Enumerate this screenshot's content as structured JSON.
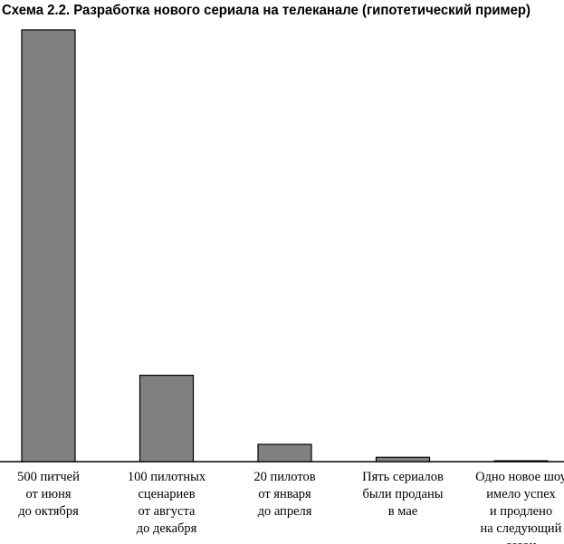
{
  "chart_data": {
    "type": "bar",
    "title": "Схема 2.2. Разработка нового сериала на телеканале (гипотетический пример)",
    "categories": [
      "500 питчей\nот июня\nдо октября",
      "100 пилотных\nсценариев\nот августа\nдо декабря",
      "20 пилотов\nот января\nдо апреля",
      "Пять сериалов\nбыли проданы\nв мае",
      "Одно новое шоу\nимело успех\nи продлено\nна следующий\nсезон"
    ],
    "values": [
      500,
      100,
      20,
      5,
      1
    ],
    "color": "#808080"
  }
}
